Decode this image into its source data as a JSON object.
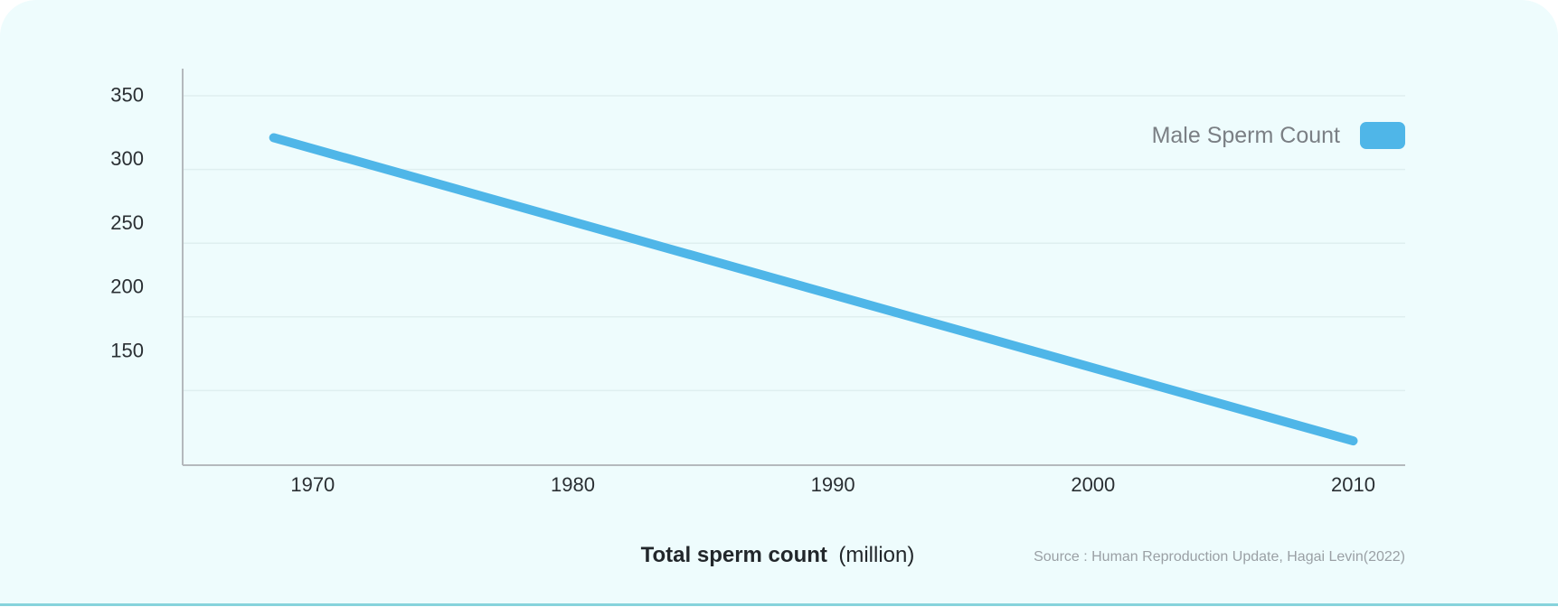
{
  "chart_data": {
    "type": "line",
    "x": [
      1968.5,
      2010
    ],
    "series": [
      {
        "name": "Male Sperm Count",
        "values": [
          316,
          79
        ],
        "color": "#4fb6e8"
      }
    ],
    "yticks": [
      "350",
      "300",
      "250",
      "200",
      "150"
    ],
    "ytick_values": [
      350,
      300,
      250,
      200,
      150
    ],
    "xticks": [
      "1970",
      "1980",
      "1990",
      "2000",
      "2010"
    ],
    "xtick_values": [
      1970,
      1980,
      1990,
      2000,
      2010
    ],
    "xlim": [
      1965,
      2012
    ],
    "ylim": [
      60,
      370
    ],
    "grid": true,
    "legend_placement": "top-right",
    "xlabel_bold": "Total sperm count",
    "xlabel_unit": "(million)",
    "source": "Source : Human Reproduction Update, Hagai Levin(2022)"
  }
}
